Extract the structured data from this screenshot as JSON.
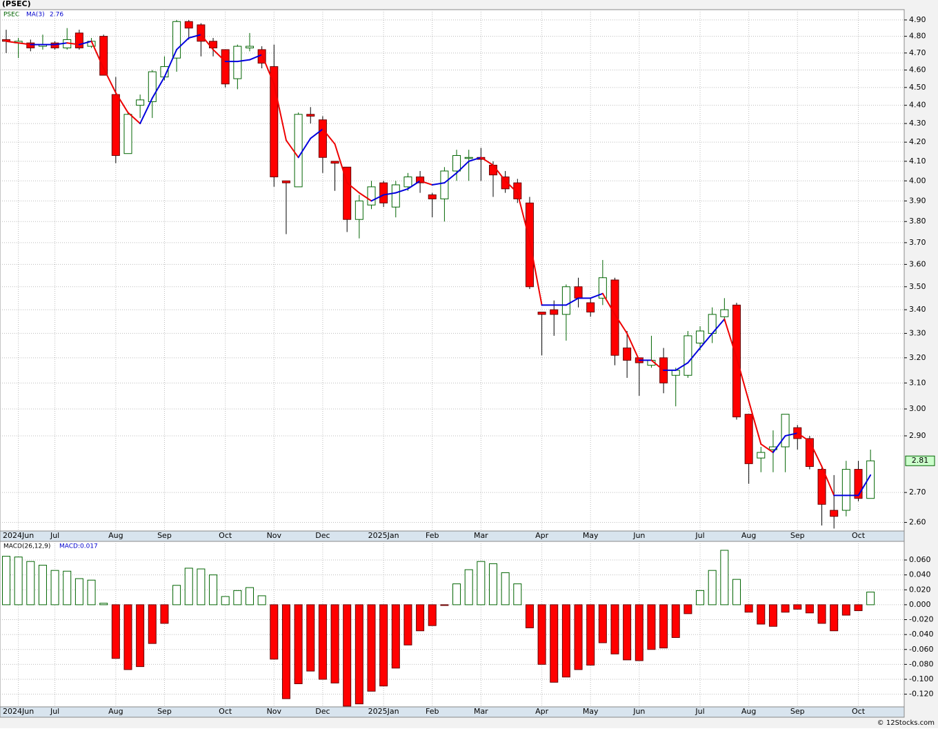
{
  "title": "(PSEC)",
  "footer": "© 12Stocks.com",
  "chart_data": [
    {
      "type": "candlestick",
      "symbol": "PSEC",
      "log_scale": true,
      "grid": true,
      "up_color": "#006400",
      "down_color": "#ff0000",
      "categories": [
        null,
        "2024Jun",
        null,
        null,
        "Jul",
        null,
        null,
        null,
        null,
        "Aug",
        null,
        null,
        null,
        "Sep",
        null,
        null,
        null,
        null,
        "Oct",
        null,
        null,
        null,
        "Nov",
        null,
        null,
        null,
        "Dec",
        null,
        null,
        null,
        null,
        "2025Jan",
        null,
        null,
        null,
        "Feb",
        null,
        null,
        null,
        "Mar",
        null,
        null,
        null,
        null,
        "Apr",
        null,
        null,
        null,
        "May",
        null,
        null,
        null,
        "Jun",
        null,
        null,
        null,
        null,
        "Jul",
        null,
        null,
        null,
        "Aug",
        null,
        null,
        null,
        "Sep",
        null,
        null,
        null,
        null,
        "Oct",
        null
      ],
      "open": [
        4.78,
        4.76,
        4.76,
        4.74,
        4.76,
        4.73,
        4.82,
        4.74,
        4.8,
        4.46,
        4.14,
        4.4,
        4.42,
        4.56,
        4.67,
        4.89,
        4.87,
        4.77,
        4.72,
        4.55,
        4.73,
        4.72,
        4.62,
        4.0,
        3.97,
        4.35,
        4.32,
        4.1,
        4.07,
        3.81,
        3.88,
        3.99,
        3.87,
        3.97,
        4.02,
        3.93,
        3.91,
        4.05,
        4.12,
        4.12,
        4.08,
        4.02,
        3.99,
        3.89,
        3.39,
        3.4,
        3.38,
        3.5,
        3.43,
        3.45,
        3.53,
        3.24,
        3.2,
        3.17,
        3.2,
        3.13,
        3.13,
        3.26,
        3.3,
        3.37,
        3.42,
        2.98,
        2.82,
        2.85,
        2.86,
        2.93,
        2.89,
        2.78,
        2.64,
        2.64,
        2.78,
        2.68
      ],
      "high": [
        4.84,
        4.79,
        4.78,
        4.81,
        4.77,
        4.85,
        4.84,
        4.79,
        4.81,
        4.56,
        4.36,
        4.46,
        4.6,
        4.68,
        4.9,
        4.9,
        4.88,
        4.79,
        4.72,
        4.75,
        4.82,
        4.74,
        4.75,
        4.0,
        4.36,
        4.39,
        4.34,
        4.1,
        4.07,
        3.93,
        4.0,
        4.0,
        4.0,
        4.04,
        4.05,
        3.94,
        4.07,
        4.16,
        4.16,
        4.17,
        4.1,
        4.05,
        4.01,
        3.92,
        3.39,
        3.44,
        3.51,
        3.54,
        3.45,
        3.62,
        3.54,
        3.31,
        3.2,
        3.29,
        3.24,
        3.16,
        3.31,
        3.33,
        3.41,
        3.45,
        3.43,
        2.98,
        2.86,
        2.92,
        2.98,
        2.94,
        2.9,
        2.79,
        2.76,
        2.81,
        2.81,
        2.85
      ],
      "low": [
        4.7,
        4.67,
        4.71,
        4.72,
        4.72,
        4.72,
        4.72,
        4.73,
        4.57,
        4.09,
        4.14,
        4.33,
        4.33,
        4.54,
        4.59,
        4.78,
        4.68,
        4.68,
        4.5,
        4.49,
        4.71,
        4.61,
        3.97,
        3.74,
        3.97,
        4.3,
        4.04,
        3.95,
        3.75,
        3.72,
        3.86,
        3.87,
        3.82,
        3.95,
        3.94,
        3.82,
        3.8,
        4.0,
        4.0,
        4.0,
        3.92,
        3.94,
        3.89,
        3.49,
        3.21,
        3.29,
        3.27,
        3.41,
        3.37,
        3.42,
        3.17,
        3.12,
        3.05,
        3.16,
        3.06,
        3.01,
        3.12,
        3.23,
        3.26,
        3.35,
        2.96,
        2.73,
        2.77,
        2.77,
        2.77,
        2.85,
        2.78,
        2.59,
        2.58,
        2.62,
        2.67,
        2.68
      ],
      "close": [
        4.77,
        4.77,
        4.73,
        4.75,
        4.73,
        4.78,
        4.73,
        4.77,
        4.57,
        4.13,
        4.35,
        4.43,
        4.59,
        4.62,
        4.89,
        4.85,
        4.77,
        4.73,
        4.52,
        4.74,
        4.74,
        4.64,
        4.02,
        3.99,
        4.35,
        4.34,
        4.12,
        4.09,
        3.81,
        3.9,
        3.97,
        3.89,
        3.98,
        4.02,
        3.99,
        3.91,
        4.05,
        4.13,
        4.12,
        4.11,
        4.03,
        3.96,
        3.91,
        3.5,
        3.38,
        3.38,
        3.5,
        3.45,
        3.39,
        3.54,
        3.21,
        3.19,
        3.18,
        3.19,
        3.1,
        3.15,
        3.29,
        3.31,
        3.38,
        3.4,
        2.97,
        2.8,
        2.84,
        2.86,
        2.98,
        2.89,
        2.79,
        2.66,
        2.62,
        2.78,
        2.68,
        2.81
      ],
      "ma": {
        "name": "MA(3)",
        "up_color": "#0000dd",
        "down_color": "#ee0000",
        "values": [
          4.77,
          4.76,
          4.75,
          4.75,
          4.75,
          4.76,
          4.75,
          4.77,
          4.61,
          4.47,
          4.36,
          4.3,
          4.44,
          4.56,
          4.72,
          4.79,
          4.81,
          4.72,
          4.65,
          4.65,
          4.66,
          4.69,
          4.52,
          4.21,
          4.12,
          4.22,
          4.27,
          4.19,
          3.99,
          3.94,
          3.9,
          3.93,
          3.94,
          3.96,
          4.0,
          3.98,
          3.99,
          4.04,
          4.1,
          4.12,
          4.08,
          4.0,
          3.94,
          3.71,
          3.42,
          3.42,
          3.42,
          3.45,
          3.45,
          3.47,
          3.38,
          3.3,
          3.19,
          3.19,
          3.15,
          3.15,
          3.18,
          3.24,
          3.3,
          3.36,
          3.2,
          3.03,
          2.87,
          2.84,
          2.9,
          2.91,
          2.88,
          2.79,
          2.69,
          2.69,
          2.69,
          2.76
        ]
      },
      "ylim": [
        2.572,
        4.964
      ],
      "yticks": [
        {
          "value": 4.9,
          "label": "4.90"
        },
        {
          "value": 4.8,
          "label": "4.80"
        },
        {
          "value": 4.7,
          "label": "4.70"
        },
        {
          "value": 4.6,
          "label": "4.60"
        },
        {
          "value": 4.5,
          "label": "4.50"
        },
        {
          "value": 4.4,
          "label": "4.40"
        },
        {
          "value": 4.3,
          "label": "4.30"
        },
        {
          "value": 4.2,
          "label": "4.20"
        },
        {
          "value": 4.1,
          "label": "4.10"
        },
        {
          "value": 4.0,
          "label": "4.00"
        },
        {
          "value": 3.9,
          "label": "3.90"
        },
        {
          "value": 3.8,
          "label": "3.80"
        },
        {
          "value": 3.7,
          "label": "3.70"
        },
        {
          "value": 3.6,
          "label": "3.60"
        },
        {
          "value": 3.5,
          "label": "3.50"
        },
        {
          "value": 3.4,
          "label": "3.40"
        },
        {
          "value": 3.3,
          "label": "3.30"
        },
        {
          "value": 3.2,
          "label": "3.20"
        },
        {
          "value": 3.1,
          "label": "3.10"
        },
        {
          "value": 3.0,
          "label": "3.00"
        },
        {
          "value": 2.9,
          "label": "2.90"
        },
        {
          "value": 2.7,
          "label": "2.70"
        },
        {
          "value": 2.6,
          "label": "2.60"
        }
      ]
    },
    {
      "type": "bar",
      "name": "MACD(26,12,9)",
      "legend_label": "MACD:0.017",
      "grid": true,
      "up_color": "#006400",
      "down_color": "#ff0000",
      "categories": [
        null,
        "2024Jun",
        null,
        null,
        "Jul",
        null,
        null,
        null,
        null,
        "Aug",
        null,
        null,
        null,
        "Sep",
        null,
        null,
        null,
        null,
        "Oct",
        null,
        null,
        null,
        "Nov",
        null,
        null,
        null,
        "Dec",
        null,
        null,
        null,
        null,
        "2025Jan",
        null,
        null,
        null,
        "Feb",
        null,
        null,
        null,
        "Mar",
        null,
        null,
        null,
        null,
        "Apr",
        null,
        null,
        null,
        "May",
        null,
        null,
        null,
        "Jun",
        null,
        null,
        null,
        null,
        "Jul",
        null,
        null,
        null,
        "Aug",
        null,
        null,
        null,
        "Sep",
        null,
        null,
        null,
        null,
        "Oct",
        null
      ],
      "values": [
        0.065,
        0.064,
        0.058,
        0.053,
        0.046,
        0.045,
        0.035,
        0.033,
        0.002,
        -0.072,
        -0.087,
        -0.083,
        -0.052,
        -0.025,
        0.026,
        0.049,
        0.048,
        0.04,
        0.011,
        0.019,
        0.023,
        0.012,
        -0.073,
        -0.126,
        -0.106,
        -0.089,
        -0.1,
        -0.105,
        -0.136,
        -0.133,
        -0.116,
        -0.109,
        -0.085,
        -0.054,
        -0.035,
        -0.028,
        -0.001,
        0.028,
        0.047,
        0.058,
        0.055,
        0.043,
        0.028,
        -0.031,
        -0.08,
        -0.104,
        -0.097,
        -0.087,
        -0.081,
        -0.051,
        -0.066,
        -0.074,
        -0.075,
        -0.06,
        -0.058,
        -0.044,
        -0.012,
        0.019,
        0.046,
        0.073,
        0.034,
        -0.01,
        -0.026,
        -0.029,
        -0.01,
        -0.006,
        -0.011,
        -0.025,
        -0.035,
        -0.014,
        -0.008,
        0.017
      ],
      "ylim": [
        -0.137,
        0.085
      ],
      "yticks": [
        {
          "value": 0.06,
          "label": "0.060"
        },
        {
          "value": 0.04,
          "label": "0.040"
        },
        {
          "value": 0.02,
          "label": "0.020"
        },
        {
          "value": 0,
          "label": "0.000"
        },
        {
          "value": -0.02,
          "label": "-0.020"
        },
        {
          "value": -0.04,
          "label": "-0.040"
        },
        {
          "value": -0.06,
          "label": "-0.060"
        },
        {
          "value": -0.08,
          "label": "-0.080"
        },
        {
          "value": -0.1,
          "label": "-0.100"
        },
        {
          "value": -0.12,
          "label": "-0.120"
        }
      ]
    }
  ]
}
